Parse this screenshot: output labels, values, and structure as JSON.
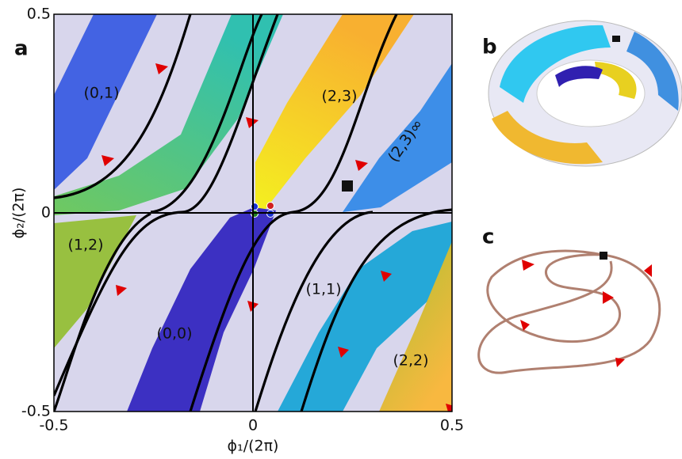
{
  "chart_data": {
    "type": "region",
    "panel_labels": [
      "a",
      "b",
      "c"
    ],
    "x_label": "ϕ₁/(2π)",
    "y_label": "ϕ₂/(2π)",
    "xlim": [
      -0.5,
      0.5
    ],
    "ylim": [
      -0.5,
      0.5
    ],
    "xticks": [
      -0.5,
      0,
      0.5
    ],
    "yticks": [
      -0.5,
      0,
      0.5
    ],
    "annotations": [
      "(0,1)",
      "(2,3)",
      "(1,2)",
      "(1,1)",
      "(0,0)",
      "(2,2)",
      "(2,3)∞"
    ]
  }
}
